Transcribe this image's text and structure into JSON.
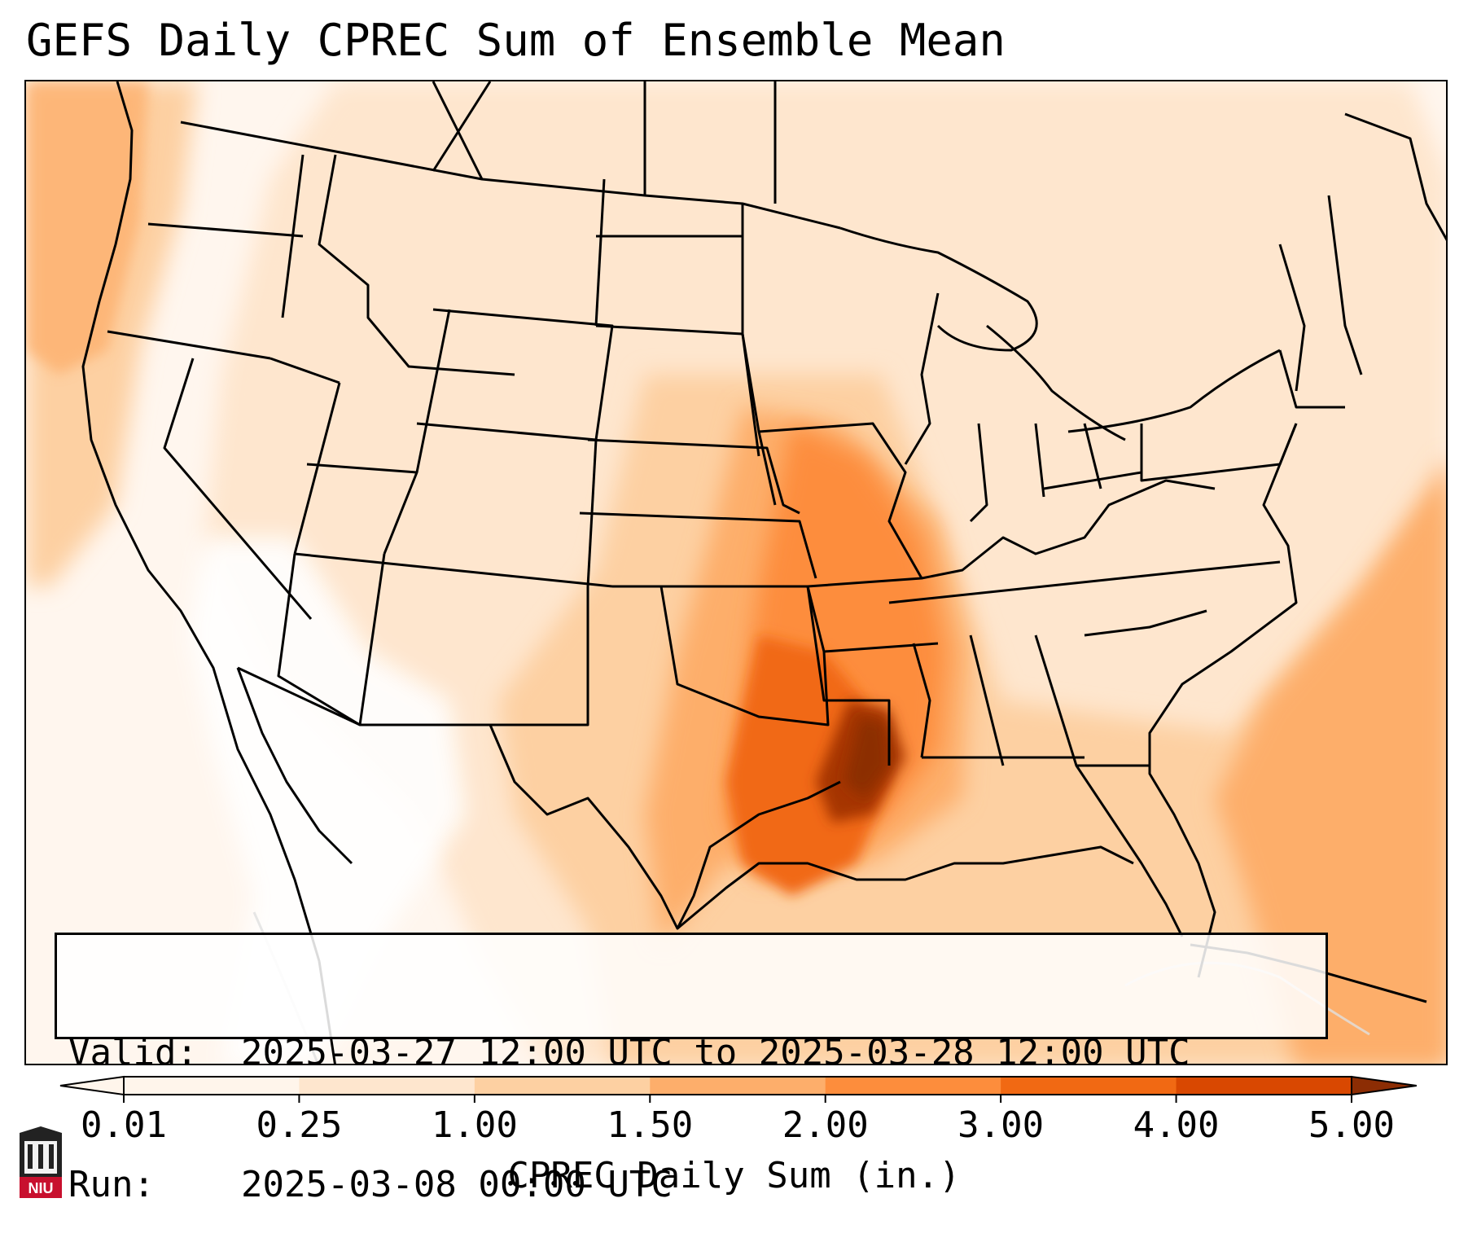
{
  "title": "GEFS Daily CPREC Sum of Ensemble Mean",
  "info": {
    "valid_label": "Valid:",
    "valid_value": "2025-03-27 12:00 UTC to 2025-03-28 12:00 UTC",
    "run_label": "Run:",
    "run_value": "2025-03-08 00:00 UTC"
  },
  "colorbar": {
    "label": "CPREC Daily Sum (in.)",
    "ticks": [
      "0.01",
      "0.25",
      "1.00",
      "1.50",
      "2.00",
      "3.00",
      "4.00",
      "5.00"
    ],
    "colors": [
      "#fff5eb",
      "#fee6ce",
      "#fdd0a2",
      "#fdae6b",
      "#fd8d3c",
      "#f16913",
      "#d94801",
      "#8c2d04"
    ],
    "extend": "both"
  },
  "map": {
    "region": "CONUS",
    "colors": {
      "background": "#fff6ee",
      "light": "#fee6ce",
      "mid": "#fdd0a2",
      "orange": "#fdae6b",
      "strong": "#fd8d3c",
      "deeper": "#f16913",
      "max": "#8c2d04",
      "borders": "#000000"
    }
  },
  "logo": {
    "text": "NIU",
    "color": "#c8102e"
  }
}
